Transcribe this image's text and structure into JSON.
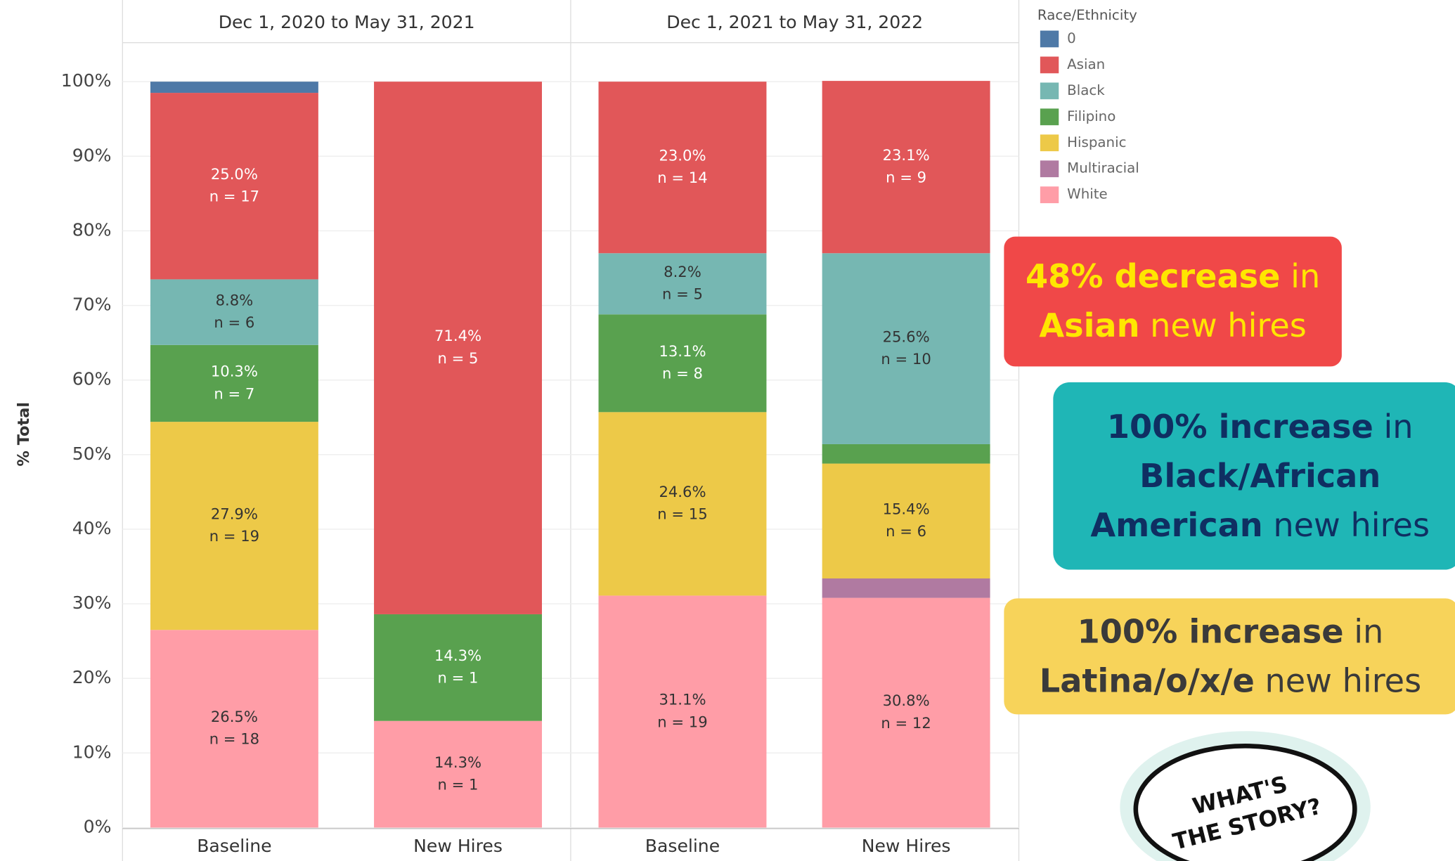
{
  "chart_data": {
    "type": "stacked_bar",
    "panel_titles": [
      "Dec 1, 2020 to May 31, 2021",
      "Dec 1, 2021 to May 31, 2022"
    ],
    "categories": [
      "Baseline",
      "New Hires",
      "Baseline",
      "New Hires"
    ],
    "ylabel": "% Total",
    "ylim": [
      0,
      100
    ],
    "yticks": [
      {
        "value": 0,
        "label": "0%"
      },
      {
        "value": 10,
        "label": "10%"
      },
      {
        "value": 20,
        "label": "20%"
      },
      {
        "value": 30,
        "label": "30%"
      },
      {
        "value": 40,
        "label": "40%"
      },
      {
        "value": 50,
        "label": "50%"
      },
      {
        "value": 60,
        "label": "60%"
      },
      {
        "value": 70,
        "label": "70%"
      },
      {
        "value": 80,
        "label": "80%"
      },
      {
        "value": 90,
        "label": "90%"
      },
      {
        "value": 100,
        "label": "100%"
      }
    ],
    "grid": true,
    "legend_title": "Race/Ethnicity",
    "series": [
      {
        "name": "White",
        "color": "#ff9da7",
        "label_color": "#333",
        "values": [
          26.5,
          14.3,
          31.1,
          30.8
        ],
        "value_labels": [
          "26.5%",
          "14.3%",
          "31.1%",
          "30.8%"
        ],
        "count_labels": [
          "n = 18",
          "n = 1",
          "n = 19",
          "n = 12"
        ]
      },
      {
        "name": "Multiracial",
        "color": "#b07aa1",
        "label_color": "#fff",
        "values": [
          0,
          0,
          0,
          2.6
        ],
        "value_labels": [
          null,
          null,
          null,
          null
        ],
        "count_labels": [
          null,
          null,
          null,
          null
        ]
      },
      {
        "name": "Hispanic",
        "color": "#edc948",
        "label_color": "#333",
        "values": [
          27.9,
          0,
          24.6,
          15.4
        ],
        "value_labels": [
          "27.9%",
          null,
          "24.6%",
          "15.4%"
        ],
        "count_labels": [
          "n = 19",
          null,
          "n = 15",
          "n = 6"
        ]
      },
      {
        "name": "Filipino",
        "color": "#59a14f",
        "label_color": "#fff",
        "values": [
          10.3,
          14.3,
          13.1,
          2.6
        ],
        "value_labels": [
          "10.3%",
          "14.3%",
          "13.1%",
          null
        ],
        "count_labels": [
          "n = 7",
          "n = 1",
          "n = 8",
          null
        ]
      },
      {
        "name": "Black",
        "color": "#76b7b2",
        "label_color": "#333",
        "values": [
          8.8,
          0,
          8.2,
          25.6
        ],
        "value_labels": [
          "8.8%",
          null,
          "8.2%",
          "25.6%"
        ],
        "count_labels": [
          "n = 6",
          null,
          "n = 5",
          "n = 10"
        ]
      },
      {
        "name": "Asian",
        "color": "#e15759",
        "label_color": "#fff",
        "values": [
          25.0,
          71.4,
          23.0,
          23.1
        ],
        "value_labels": [
          "25.0%",
          "71.4%",
          "23.0%",
          "23.1%"
        ],
        "count_labels": [
          "n = 17",
          "n = 5",
          "n = 14",
          "n = 9"
        ]
      },
      {
        "name": "0",
        "color": "#4e79a7",
        "label_color": "#fff",
        "values": [
          1.5,
          0,
          0,
          0
        ],
        "value_labels": [
          null,
          null,
          null,
          null
        ],
        "count_labels": [
          null,
          null,
          null,
          null
        ]
      }
    ],
    "legend_order": [
      6,
      5,
      4,
      3,
      2,
      1,
      0
    ],
    "annotations": [
      {
        "lines": [
          {
            "bold": "48% decrease",
            "rest": " in"
          },
          {
            "bold": "Asian",
            "rest": " new hires"
          }
        ]
      },
      {
        "lines": [
          {
            "bold": "100% increase",
            "rest": " in"
          },
          {
            "bold": "Black/African"
          },
          {
            "bold": "American",
            "rest": " new hires"
          }
        ]
      },
      {
        "lines": [
          {
            "bold": "100% increase",
            "rest": " in"
          },
          {
            "bold": "Latina/o/x/e",
            "rest": " new hires"
          }
        ]
      }
    ],
    "story_lines": [
      "WHAT'S",
      "THE STORY?"
    ]
  }
}
